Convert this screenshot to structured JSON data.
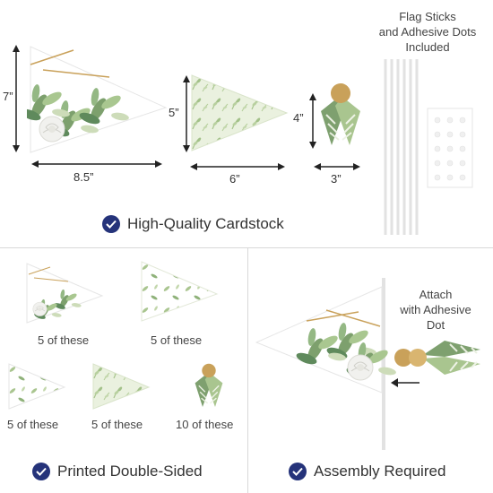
{
  "top": {
    "large_pennant": {
      "height": "7”",
      "width": "8.5”"
    },
    "medium_pennant": {
      "height": "5”",
      "width": "6”"
    },
    "tie_piece": {
      "height": "4”",
      "width": "3”"
    },
    "sticks_caption": [
      "Flag Sticks",
      "and Adhesive Dots",
      "Included"
    ],
    "feature": "High-Quality Cardstock"
  },
  "bottom_left": {
    "items": [
      {
        "count": "5 of these"
      },
      {
        "count": "5 of these"
      },
      {
        "count": "5 of these"
      },
      {
        "count": "5 of these"
      },
      {
        "count": "10 of these"
      }
    ],
    "feature": "Printed Double-Sided"
  },
  "bottom_right": {
    "caption": [
      "Attach",
      "with Adhesive",
      "Dot"
    ],
    "feature": "Assembly Required"
  },
  "colors": {
    "check_badge": "#25337a",
    "leaf_light": "#9ebf8a",
    "leaf_dark": "#4f7a4f",
    "gold": "#c9a15a"
  }
}
